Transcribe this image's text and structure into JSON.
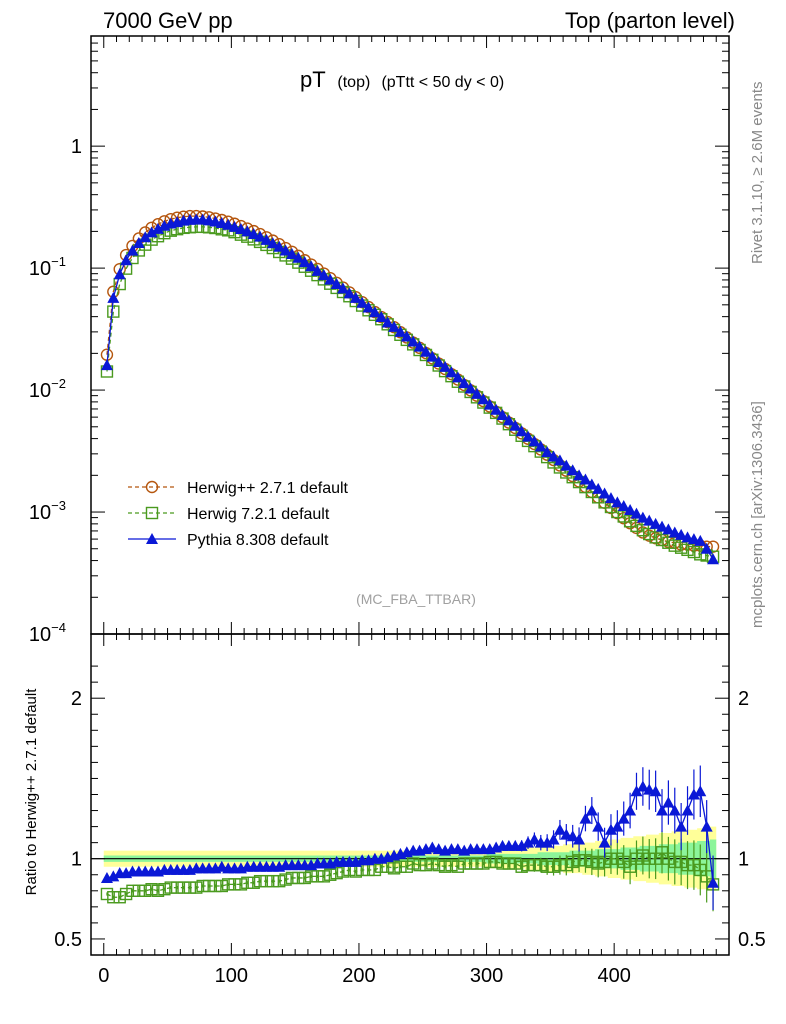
{
  "header": {
    "left": "7000 GeV pp",
    "right": "Top (parton level)"
  },
  "title": {
    "main": "pT",
    "sub1": "(top)",
    "sub2": "(pTtt < 50 dy < 0)"
  },
  "side_labels": {
    "rivet": "Rivet 3.1.10, ≥ 2.6M events",
    "mcplots": "mcplots.cern.ch [arXiv:1306.3436]"
  },
  "watermark": "(MC_FBA_TTBAR)",
  "colors": {
    "herwig27": "#b5560e",
    "herwig72": "#4a9a1e",
    "pythia": "#0a18d6",
    "band_green": "#8cf59a",
    "band_yellow": "#ffff99"
  },
  "chart_data": {
    "type": "line",
    "top_panel": {
      "yscale": "log",
      "ylim": [
        0.0001,
        8
      ],
      "yticks": [
        {
          "v": 1,
          "base": "1",
          "exp": ""
        },
        {
          "v": 0.1,
          "base": "10",
          "exp": "−1"
        },
        {
          "v": 0.01,
          "base": "10",
          "exp": "−2"
        },
        {
          "v": 0.001,
          "base": "10",
          "exp": "−3"
        },
        {
          "v": 0.0001,
          "base": "10",
          "exp": "−4"
        }
      ]
    },
    "ratio_panel": {
      "ylabel": "Ratio to Herwig++ 2.7.1 default",
      "ylim": [
        0.4,
        2.4
      ],
      "yticks": [
        {
          "v": 0.5,
          "label": "0.5"
        },
        {
          "v": 1,
          "label": "1"
        },
        {
          "v": 2,
          "label": "2"
        }
      ]
    },
    "xlim": [
      -10,
      490
    ],
    "xticks": [
      {
        "v": 0,
        "label": "0"
      },
      {
        "v": 100,
        "label": "100"
      },
      {
        "v": 200,
        "label": "200"
      },
      {
        "v": 300,
        "label": "300"
      },
      {
        "v": 400,
        "label": "400"
      }
    ],
    "x": [
      2.5,
      7.5,
      12.5,
      17.5,
      22.5,
      27.5,
      32.5,
      37.5,
      42.5,
      47.5,
      52.5,
      57.5,
      62.5,
      67.5,
      72.5,
      77.5,
      82.5,
      87.5,
      92.5,
      97.5,
      102.5,
      107.5,
      112.5,
      117.5,
      122.5,
      127.5,
      132.5,
      137.5,
      142.5,
      147.5,
      152.5,
      157.5,
      162.5,
      167.5,
      172.5,
      177.5,
      182.5,
      187.5,
      192.5,
      197.5,
      202.5,
      207.5,
      212.5,
      217.5,
      222.5,
      227.5,
      232.5,
      237.5,
      242.5,
      247.5,
      252.5,
      257.5,
      262.5,
      267.5,
      272.5,
      277.5,
      282.5,
      287.5,
      292.5,
      297.5,
      302.5,
      307.5,
      312.5,
      317.5,
      322.5,
      327.5,
      332.5,
      337.5,
      342.5,
      347.5,
      352.5,
      357.5,
      362.5,
      367.5,
      372.5,
      377.5,
      382.5,
      387.5,
      392.5,
      397.5,
      402.5,
      407.5,
      412.5,
      417.5,
      422.5,
      427.5,
      432.5,
      437.5,
      442.5,
      447.5,
      452.5,
      457.5,
      462.5,
      467.5,
      472.5,
      477.5
    ],
    "series": [
      {
        "name": "Herwig++ 2.7.1 default",
        "style": "circle-dashed",
        "values": [
          0.0195,
          0.064,
          0.098,
          0.128,
          0.152,
          0.175,
          0.196,
          0.214,
          0.229,
          0.242,
          0.252,
          0.259,
          0.264,
          0.267,
          0.267,
          0.265,
          0.261,
          0.255,
          0.248,
          0.24,
          0.231,
          0.221,
          0.211,
          0.201,
          0.19,
          0.179,
          0.168,
          0.157,
          0.146,
          0.136,
          0.126,
          0.116,
          0.107,
          0.0984,
          0.0903,
          0.0827,
          0.0757,
          0.0692,
          0.0632,
          0.0577,
          0.0526,
          0.0479,
          0.0436,
          0.0397,
          0.0361,
          0.0328,
          0.0298,
          0.027,
          0.0245,
          0.0222,
          0.0201,
          0.0182,
          0.0165,
          0.0149,
          0.0135,
          0.0122,
          0.011,
          0.00995,
          0.00899,
          0.00812,
          0.00734,
          0.00663,
          0.00599,
          0.00541,
          0.00489,
          0.00442,
          0.00399,
          0.00361,
          0.00326,
          0.00295,
          0.00267,
          0.00241,
          0.00218,
          0.00197,
          0.00178,
          0.00161,
          0.00146,
          0.00132,
          0.00119,
          0.00108,
          0.00098,
          0.00089,
          0.00081,
          0.00074,
          0.00068,
          0.00064,
          0.00061,
          0.00059,
          0.00057,
          0.00056,
          0.00054,
          0.00054,
          0.00053,
          0.00053,
          0.00052,
          0.00052
        ]
      },
      {
        "name": "Herwig 7.2.1 default",
        "style": "square-dashed",
        "values": [
          0.0142,
          0.044,
          0.074,
          0.099,
          0.121,
          0.1395,
          0.1557,
          0.1712,
          0.1826,
          0.1934,
          0.2027,
          0.2085,
          0.2138,
          0.2163,
          0.2179,
          0.218,
          0.216,
          0.2132,
          0.208,
          0.204,
          0.197,
          0.188,
          0.181,
          0.172,
          0.164,
          0.155,
          0.146,
          0.1356,
          0.127,
          0.1195,
          0.1109,
          0.1026,
          0.0952,
          0.0876,
          0.0808,
          0.0745,
          0.0688,
          0.0637,
          0.0588,
          0.0537,
          0.0493,
          0.0451,
          0.0414,
          0.0381,
          0.0346,
          0.0311,
          0.0284,
          0.0258,
          0.0237,
          0.0213,
          0.0194,
          0.0177,
          0.0159,
          0.0143,
          0.013,
          0.0117,
          0.0107,
          0.00965,
          0.00872,
          0.0079,
          0.00718,
          0.0065,
          0.00584,
          0.00525,
          0.00473,
          0.00422,
          0.00383,
          0.00347,
          0.00313,
          0.00282,
          0.00255,
          0.00232,
          0.00211,
          0.00193,
          0.00176,
          0.0016,
          0.00146,
          0.00132,
          0.0012,
          0.0011,
          0.001,
          0.00092,
          0.00084,
          0.00077,
          0.00071,
          0.00066,
          0.00062,
          0.00059,
          0.00056,
          0.00053,
          0.00051,
          0.00049,
          0.00047,
          0.00045,
          0.00044,
          0.00043
        ]
      },
      {
        "name": "Pythia 8.308 default",
        "style": "triangle-solid",
        "values": [
          0.016,
          0.057,
          0.089,
          0.116,
          0.139,
          0.1605,
          0.179,
          0.1965,
          0.2095,
          0.2225,
          0.232,
          0.2385,
          0.245,
          0.2485,
          0.2505,
          0.25,
          0.246,
          0.241,
          0.2345,
          0.2265,
          0.218,
          0.209,
          0.2,
          0.1905,
          0.181,
          0.1705,
          0.16,
          0.1495,
          0.1395,
          0.1305,
          0.1215,
          0.112,
          0.1035,
          0.095,
          0.0875,
          0.0805,
          0.074,
          0.068,
          0.062,
          0.057,
          0.052,
          0.0475,
          0.0435,
          0.0397,
          0.0358,
          0.033,
          0.03,
          0.0275,
          0.025,
          0.0227,
          0.0206,
          0.0188,
          0.017,
          0.0155,
          0.014,
          0.0127,
          0.0114,
          0.0103,
          0.0093,
          0.0084,
          0.0076,
          0.0069,
          0.00625,
          0.00565,
          0.0051,
          0.0046,
          0.00415,
          0.0038,
          0.00345,
          0.0031,
          0.00285,
          0.00265,
          0.0024,
          0.0022,
          0.002,
          0.00185,
          0.00168,
          0.00155,
          0.00142,
          0.0013,
          0.0012,
          0.00112,
          0.00104,
          0.00097,
          0.0009,
          0.00085,
          0.0008,
          0.00076,
          0.00072,
          0.00068,
          0.00065,
          0.00062,
          0.0006,
          0.00058,
          0.0005,
          0.00041
        ]
      }
    ],
    "ratio": {
      "herwig72": [
        0.78,
        0.76,
        0.76,
        0.78,
        0.8,
        0.8,
        0.8,
        0.81,
        0.8,
        0.81,
        0.82,
        0.82,
        0.82,
        0.82,
        0.82,
        0.83,
        0.83,
        0.83,
        0.83,
        0.84,
        0.84,
        0.84,
        0.85,
        0.85,
        0.86,
        0.86,
        0.86,
        0.86,
        0.87,
        0.88,
        0.88,
        0.88,
        0.89,
        0.89,
        0.89,
        0.9,
        0.91,
        0.92,
        0.93,
        0.92,
        0.93,
        0.93,
        0.93,
        0.95,
        0.95,
        0.94,
        0.95,
        0.95,
        0.97,
        0.96,
        0.96,
        0.97,
        0.96,
        0.95,
        0.96,
        0.95,
        0.97,
        0.97,
        0.97,
        0.97,
        0.98,
        0.98,
        0.97,
        0.97,
        0.97,
        0.95,
        0.96,
        0.96,
        0.96,
        0.95,
        0.95,
        0.96,
        0.96,
        0.98,
        0.99,
        0.99,
        0.98,
        0.97,
        0.98,
        1.0,
        1.0,
        0.98,
        0.95,
        1.0,
        1.02,
        1.0,
        1.0,
        1.04,
        1.0,
        0.98,
        0.98,
        0.96,
        0.96,
        0.93,
        0.89,
        0.84
      ],
      "pythia": [
        0.88,
        0.89,
        0.91,
        0.91,
        0.92,
        0.92,
        0.92,
        0.92,
        0.92,
        0.93,
        0.93,
        0.93,
        0.93,
        0.93,
        0.94,
        0.94,
        0.94,
        0.94,
        0.95,
        0.94,
        0.94,
        0.94,
        0.95,
        0.95,
        0.95,
        0.95,
        0.95,
        0.95,
        0.96,
        0.96,
        0.96,
        0.96,
        0.96,
        0.97,
        0.97,
        0.97,
        0.98,
        0.98,
        0.98,
        0.98,
        0.99,
        0.99,
        1.0,
        1.0,
        1.01,
        1.02,
        1.03,
        1.04,
        1.05,
        1.05,
        1.06,
        1.07,
        1.06,
        1.05,
        1.06,
        1.06,
        1.05,
        1.06,
        1.06,
        1.06,
        1.06,
        1.07,
        1.08,
        1.08,
        1.08,
        1.08,
        1.1,
        1.12,
        1.1,
        1.1,
        1.12,
        1.18,
        1.15,
        1.14,
        1.12,
        1.25,
        1.3,
        1.2,
        1.1,
        1.18,
        1.2,
        1.25,
        1.3,
        1.42,
        1.45,
        1.43,
        1.42,
        1.3,
        1.35,
        1.3,
        1.2,
        1.3,
        1.4,
        1.42,
        1.2,
        0.85
      ],
      "band_yellow_half": [
        0.05,
        0.05,
        0.05,
        0.05,
        0.05,
        0.05,
        0.05,
        0.05,
        0.05,
        0.05,
        0.05,
        0.05,
        0.05,
        0.05,
        0.05,
        0.05,
        0.05,
        0.05,
        0.05,
        0.05,
        0.05,
        0.05,
        0.05,
        0.05,
        0.05,
        0.05,
        0.05,
        0.05,
        0.05,
        0.05,
        0.05,
        0.05,
        0.05,
        0.05,
        0.05,
        0.05,
        0.05,
        0.05,
        0.05,
        0.05,
        0.05,
        0.05,
        0.05,
        0.05,
        0.05,
        0.05,
        0.05,
        0.05,
        0.05,
        0.05,
        0.05,
        0.05,
        0.05,
        0.05,
        0.05,
        0.05,
        0.05,
        0.05,
        0.05,
        0.05,
        0.06,
        0.06,
        0.06,
        0.06,
        0.06,
        0.06,
        0.07,
        0.07,
        0.07,
        0.08,
        0.08,
        0.08,
        0.09,
        0.09,
        0.09,
        0.1,
        0.1,
        0.11,
        0.11,
        0.12,
        0.12,
        0.13,
        0.13,
        0.14,
        0.14,
        0.15,
        0.15,
        0.16,
        0.16,
        0.17,
        0.17,
        0.18,
        0.18,
        0.19,
        0.19,
        0.2
      ],
      "band_green_half": [
        0.02,
        0.02,
        0.02,
        0.02,
        0.02,
        0.02,
        0.02,
        0.02,
        0.02,
        0.02,
        0.02,
        0.02,
        0.02,
        0.02,
        0.02,
        0.02,
        0.02,
        0.02,
        0.02,
        0.02,
        0.02,
        0.02,
        0.02,
        0.02,
        0.02,
        0.02,
        0.02,
        0.02,
        0.02,
        0.02,
        0.02,
        0.02,
        0.02,
        0.02,
        0.02,
        0.02,
        0.02,
        0.02,
        0.02,
        0.02,
        0.02,
        0.02,
        0.02,
        0.02,
        0.02,
        0.02,
        0.02,
        0.02,
        0.02,
        0.02,
        0.02,
        0.02,
        0.02,
        0.02,
        0.02,
        0.02,
        0.02,
        0.02,
        0.02,
        0.02,
        0.03,
        0.03,
        0.03,
        0.03,
        0.03,
        0.03,
        0.03,
        0.03,
        0.04,
        0.04,
        0.04,
        0.04,
        0.04,
        0.05,
        0.05,
        0.05,
        0.05,
        0.06,
        0.06,
        0.06,
        0.06,
        0.07,
        0.07,
        0.07,
        0.08,
        0.08,
        0.08,
        0.09,
        0.09,
        0.09,
        0.1,
        0.1,
        0.1,
        0.11,
        0.11,
        0.12
      ]
    }
  }
}
